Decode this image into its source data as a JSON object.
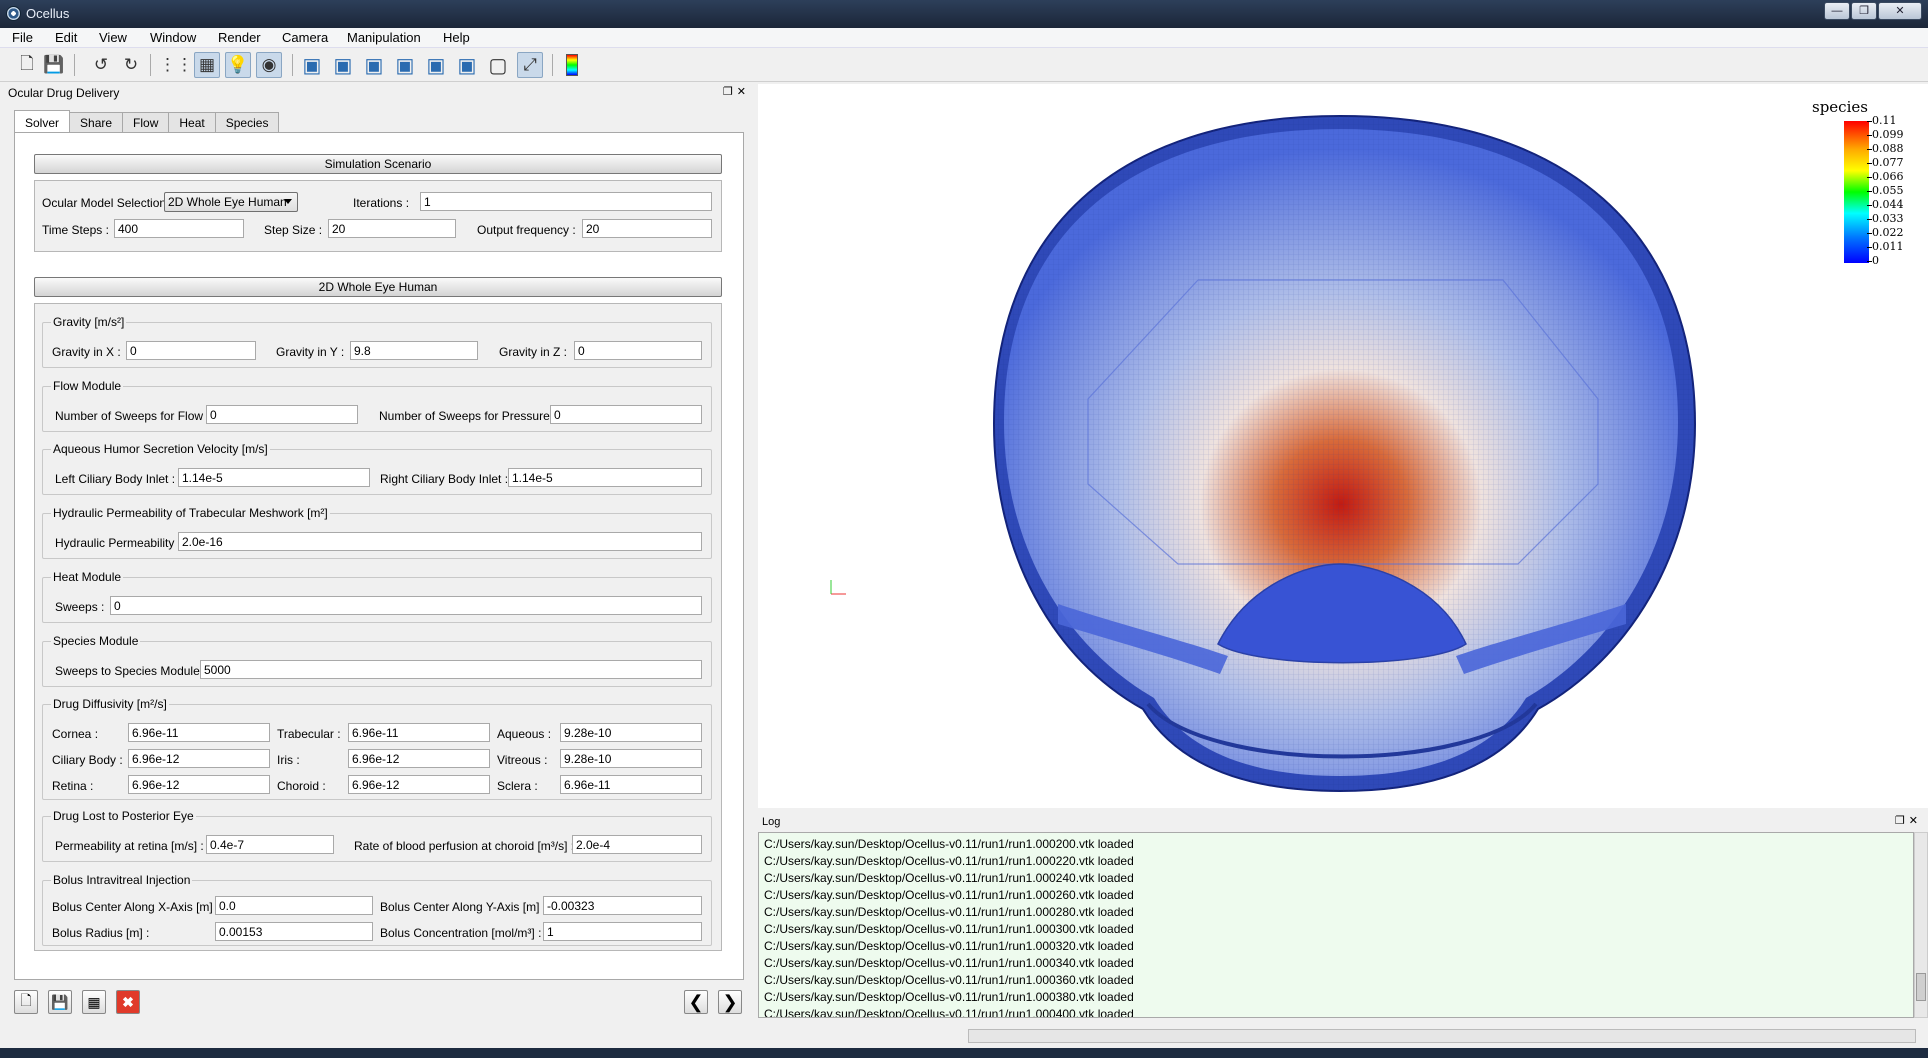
{
  "window": {
    "title": "Ocellus"
  },
  "menu": [
    "File",
    "Edit",
    "View",
    "Window",
    "Render",
    "Camera",
    "Manipulation",
    "Help"
  ],
  "toolbar": {
    "icons": [
      "new-document-icon",
      "save-icon",
      "undo-icon",
      "redo-icon",
      "points-icon",
      "wireframe-icon",
      "light-bulb-icon",
      "lighting-icon",
      "view-front-icon",
      "view-back-icon",
      "view-left-icon",
      "view-right-icon",
      "view-top-icon",
      "view-bottom-icon",
      "view-iso-icon",
      "fit-view-icon",
      "colormap-icon"
    ]
  },
  "dock": {
    "title": "Ocular Drug Delivery"
  },
  "tabs": [
    "Solver",
    "Share",
    "Flow",
    "Heat",
    "Species"
  ],
  "scenario": {
    "header": "Simulation Scenario",
    "model_label": "Ocular Model Selection :",
    "model_value": "2D Whole Eye Human",
    "iterations_label": "Iterations :",
    "iterations_value": "1",
    "time_steps_label": "Time Steps :",
    "time_steps_value": "400",
    "step_size_label": "Step Size :",
    "step_size_value": "20",
    "output_freq_label": "Output frequency :",
    "output_freq_value": "20"
  },
  "model": {
    "header": "2D Whole Eye Human",
    "gravity": {
      "title": "Gravity [m/s²]",
      "x_label": "Gravity in X :",
      "x_value": "0",
      "y_label": "Gravity in Y :",
      "y_value": "9.8",
      "z_label": "Gravity in Z :",
      "z_value": "0"
    },
    "flow": {
      "title": "Flow Module",
      "sweeps_flow_label": "Number of Sweeps for Flow :",
      "sweeps_flow_value": "0",
      "sweeps_pressure_label": "Number of Sweeps for Pressure :",
      "sweeps_pressure_value": "0"
    },
    "aqueous": {
      "title": "Aqueous Humor Secretion Velocity [m/s]",
      "left_label": "Left Ciliary Body Inlet :",
      "left_value": "1.14e-5",
      "right_label": "Right Ciliary Body Inlet :",
      "right_value": "1.14e-5"
    },
    "hydraulic": {
      "title": "Hydraulic Permeability of Trabecular Meshwork [m²]",
      "label": "Hydraulic Permeability :",
      "value": "2.0e-16"
    },
    "heat": {
      "title": "Heat Module",
      "label": "Sweeps :",
      "value": "0"
    },
    "species": {
      "title": "Species Module",
      "label": "Sweeps to Species Module :",
      "value": "5000"
    },
    "diffusivity": {
      "title": "Drug Diffusivity [m²/s]",
      "cornea_label": "Cornea :",
      "cornea_value": "6.96e-11",
      "trabecular_label": "Trabecular :",
      "trabecular_value": "6.96e-11",
      "aqueous_label": "Aqueous :",
      "aqueous_value": "9.28e-10",
      "ciliary_label": "Ciliary Body :",
      "ciliary_value": "6.96e-12",
      "iris_label": "Iris :",
      "iris_value": "6.96e-12",
      "vitreous_label": "Vitreous :",
      "vitreous_value": "9.28e-10",
      "retina_label": "Retina :",
      "retina_value": "6.96e-12",
      "choroid_label": "Choroid :",
      "choroid_value": "6.96e-12",
      "sclera_label": "Sclera :",
      "sclera_value": "6.96e-11"
    },
    "posterior": {
      "title": "Drug Lost to Posterior Eye",
      "retina_label": "Permeability at retina [m/s] :",
      "retina_value": "0.4e-7",
      "perfusion_label": "Rate of blood perfusion at choroid [m³/s] :",
      "perfusion_value": "2.0e-4"
    },
    "bolus": {
      "title": "Bolus Intravitreal Injection",
      "cx_label": "Bolus Center Along X-Axis [m] :",
      "cx_value": "0.0",
      "cy_label": "Bolus Center Along Y-Axis [m] :",
      "cy_value": "-0.00323",
      "r_label": "Bolus Radius [m] :",
      "r_value": "0.00153",
      "c_label": "Bolus Concentration [mol/m³] :",
      "c_value": "1"
    }
  },
  "legend": {
    "title": "species",
    "ticks": [
      "0.11",
      "0.099",
      "0.088",
      "0.077",
      "0.066",
      "0.055",
      "0.044",
      "0.033",
      "0.022",
      "0.011",
      "0"
    ]
  },
  "log": {
    "title": "Log",
    "lines": [
      "C:/Users/kay.sun/Desktop/Ocellus-v0.11/run1/run1.000200.vtk loaded",
      "C:/Users/kay.sun/Desktop/Ocellus-v0.11/run1/run1.000220.vtk loaded",
      "C:/Users/kay.sun/Desktop/Ocellus-v0.11/run1/run1.000240.vtk loaded",
      "C:/Users/kay.sun/Desktop/Ocellus-v0.11/run1/run1.000260.vtk loaded",
      "C:/Users/kay.sun/Desktop/Ocellus-v0.11/run1/run1.000280.vtk loaded",
      "C:/Users/kay.sun/Desktop/Ocellus-v0.11/run1/run1.000300.vtk loaded",
      "C:/Users/kay.sun/Desktop/Ocellus-v0.11/run1/run1.000320.vtk loaded",
      "C:/Users/kay.sun/Desktop/Ocellus-v0.11/run1/run1.000340.vtk loaded",
      "C:/Users/kay.sun/Desktop/Ocellus-v0.11/run1/run1.000360.vtk loaded",
      "C:/Users/kay.sun/Desktop/Ocellus-v0.11/run1/run1.000380.vtk loaded",
      "C:/Users/kay.sun/Desktop/Ocellus-v0.11/run1/run1.000400.vtk loaded"
    ]
  },
  "colors": {
    "mesh_blue": "#3a58d6",
    "hot_red": "#c8201a",
    "log_bg": "#eefbee"
  }
}
